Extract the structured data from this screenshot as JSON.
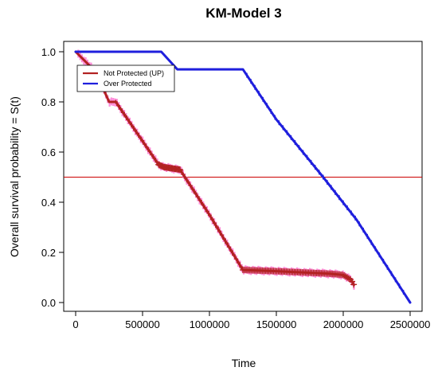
{
  "chart_data": {
    "type": "line",
    "title": "KM-Model 3",
    "xlabel": "Time",
    "ylabel": "Overall survival probability = S(t)",
    "xlim": [
      0,
      2500000
    ],
    "ylim": [
      0,
      1
    ],
    "xticks": [
      0,
      500000,
      1000000,
      1500000,
      2000000,
      2500000
    ],
    "xtick_labels": [
      "0",
      "500000",
      "1000000",
      "1500000",
      "2000000",
      "2500000"
    ],
    "yticks": [
      0,
      0.2,
      0.4,
      0.6,
      0.8,
      1
    ],
    "ytick_labels": [
      "0.0",
      "0.2",
      "0.4",
      "0.6",
      "0.8",
      "1.0"
    ],
    "grid": false,
    "legend_position": "top-left",
    "reference_line": {
      "y": 0.5,
      "color": "#cc0000"
    },
    "series": [
      {
        "name": "Not Protected (UP)",
        "color": "#b22222",
        "censor_color": "#ff66cc",
        "x": [
          0,
          150000,
          250000,
          300000,
          620000,
          660000,
          780000,
          1000000,
          1250000,
          1500000,
          1700000,
          1900000,
          2000000,
          2060000,
          2080000
        ],
        "y": [
          1.0,
          0.92,
          0.8,
          0.8,
          0.55,
          0.54,
          0.53,
          0.35,
          0.13,
          0.125,
          0.12,
          0.115,
          0.11,
          0.09,
          0.07
        ]
      },
      {
        "name": "Over Protected",
        "color": "#1f1fdd",
        "x": [
          0,
          640000,
          760000,
          1250000,
          1500000,
          1850000,
          2100000,
          2500000
        ],
        "y": [
          1.0,
          1.0,
          0.93,
          0.93,
          0.73,
          0.5,
          0.33,
          0.0
        ]
      }
    ]
  }
}
